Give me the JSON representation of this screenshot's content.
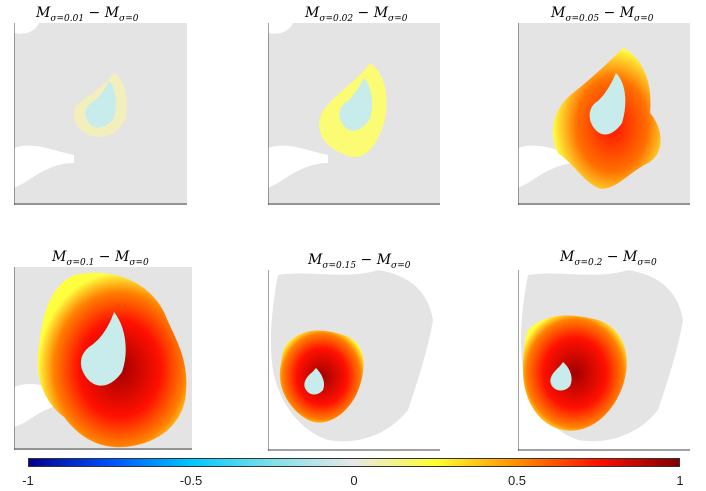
{
  "panels": [
    {
      "id": "p1",
      "title_main": "M",
      "title_sub1": "σ=0.01",
      "title_sep": " − M",
      "title_sub2": "σ=0",
      "intensity": 0.1
    },
    {
      "id": "p2",
      "title_main": "M",
      "title_sub1": "σ=0.02",
      "title_sep": " − M",
      "title_sub2": "σ=0",
      "intensity": 0.25
    },
    {
      "id": "p3",
      "title_main": "M",
      "title_sub1": "σ=0.05",
      "title_sep": " − M",
      "title_sub2": "σ=0",
      "intensity": 0.65
    },
    {
      "id": "p4",
      "title_main": "M",
      "title_sub1": "σ=0.1",
      "title_sep": " − M",
      "title_sub2": "σ=0",
      "intensity": 0.9
    },
    {
      "id": "p5",
      "title_main": "M",
      "title_sub1": "σ=0.15",
      "title_sep": " − M",
      "title_sub2": "σ=0",
      "intensity": 0.95
    },
    {
      "id": "p6",
      "title_main": "M",
      "title_sub1": "σ=0.2",
      "title_sep": " − M",
      "title_sub2": "σ=0",
      "intensity": 0.95
    }
  ],
  "colorbar": {
    "ticks": [
      "-1",
      "-0.5",
      "0",
      "0.5",
      "1"
    ],
    "colors": [
      "#00008f",
      "#0050ff",
      "#00c8ff",
      "#80e0e8",
      "#e8e8e8",
      "#ffff30",
      "#ff9000",
      "#ff1000",
      "#800000"
    ]
  },
  "colors": {
    "background_tissue": "#e4e4e4",
    "tumor_core": "#c8ecec"
  }
}
